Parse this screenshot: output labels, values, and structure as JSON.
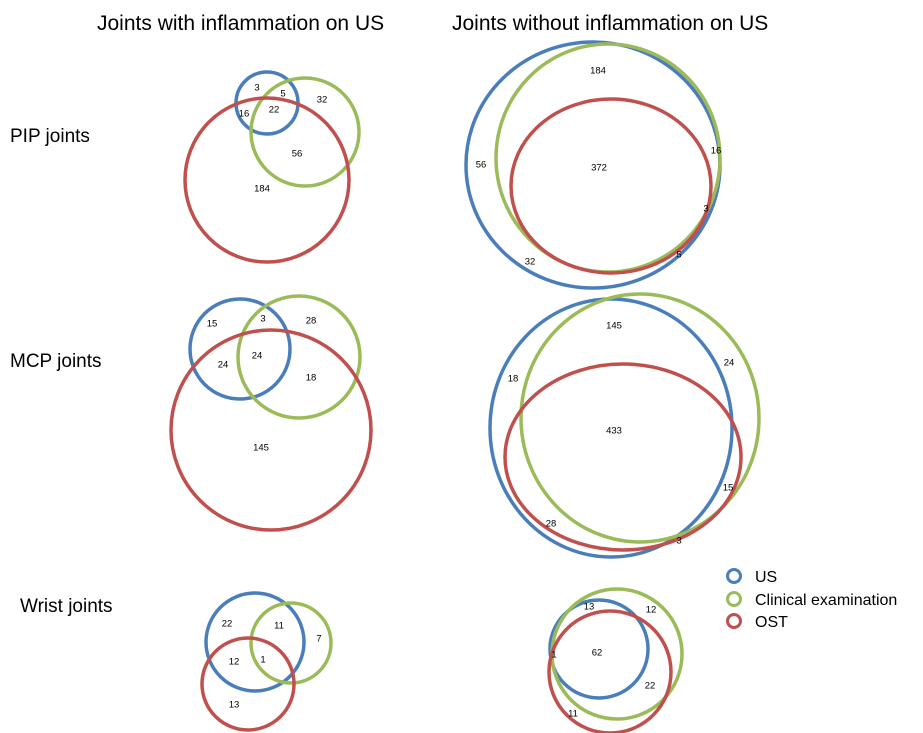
{
  "columns": {
    "with": "Joints with inflammation on US",
    "without": "Joints without inflammation on US"
  },
  "rows": {
    "pip": "PIP joints",
    "mcp": "MCP joints",
    "wrist": "Wrist joints"
  },
  "legend": [
    {
      "label": "US",
      "color": "#4a7ebb"
    },
    {
      "label": "Clinical examination",
      "color": "#9bbb59"
    },
    {
      "label": "OST",
      "color": "#c0504d"
    }
  ],
  "colors": {
    "us": "#4a7ebb",
    "clinical": "#9bbb59",
    "ost": "#c0504d"
  },
  "diagrams": {
    "pip_with": [
      "3",
      "5",
      "32",
      "16",
      "22",
      "56",
      "184"
    ],
    "pip_without": [
      "184",
      "56",
      "372",
      "16",
      "3",
      "5",
      "32"
    ],
    "mcp_with": [
      "15",
      "3",
      "28",
      "24",
      "24",
      "18",
      "145"
    ],
    "mcp_without": [
      "145",
      "18",
      "24",
      "433",
      "15",
      "28",
      "3"
    ],
    "wrist_with": [
      "22",
      "11",
      "7",
      "12",
      "1",
      "13"
    ],
    "wrist_without": [
      "13",
      "12",
      "1",
      "62",
      "22",
      "11"
    ]
  }
}
